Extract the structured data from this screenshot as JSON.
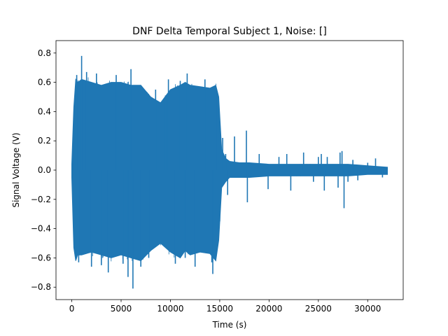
{
  "chart_data": {
    "type": "line",
    "title": "DNF Delta Temporal Subject 1, Noise: []",
    "xlabel": "Time (s)",
    "ylabel": "Signal Voltage (V)",
    "xlim": [
      -1600,
      33600
    ],
    "ylim": [
      -0.885,
      0.885
    ],
    "xticks": [
      0,
      5000,
      10000,
      15000,
      20000,
      25000,
      30000
    ],
    "xtick_labels": [
      "0",
      "5000",
      "10000",
      "15000",
      "20000",
      "25000",
      "30000"
    ],
    "yticks": [
      -0.8,
      -0.6,
      -0.4,
      -0.2,
      0.0,
      0.2,
      0.4,
      0.6,
      0.8
    ],
    "ytick_labels": [
      "−0.8",
      "−0.6",
      "−0.4",
      "−0.2",
      "0.0",
      "0.2",
      "0.4",
      "0.6",
      "0.8"
    ],
    "grid": false,
    "series_color": "#1f77b4",
    "envelope": {
      "x": [
        0,
        200,
        400,
        600,
        1000,
        2000,
        3000,
        4000,
        5000,
        6000,
        7000,
        8000,
        9000,
        10000,
        11000,
        11500,
        12000,
        13000,
        14000,
        14600,
        14900,
        15200,
        15600,
        16000,
        17000,
        18000,
        20000,
        22000,
        24000,
        26000,
        28000,
        30000,
        32000
      ],
      "upper": [
        0.04,
        0.43,
        0.62,
        0.6,
        0.62,
        0.6,
        0.58,
        0.6,
        0.6,
        0.58,
        0.58,
        0.5,
        0.46,
        0.55,
        0.58,
        0.6,
        0.58,
        0.57,
        0.56,
        0.58,
        0.5,
        0.14,
        0.08,
        0.06,
        0.05,
        0.05,
        0.04,
        0.04,
        0.04,
        0.04,
        0.04,
        0.03,
        0.02
      ],
      "lower": [
        -0.05,
        -0.53,
        -0.62,
        -0.58,
        -0.58,
        -0.56,
        -0.58,
        -0.6,
        -0.58,
        -0.6,
        -0.62,
        -0.55,
        -0.5,
        -0.56,
        -0.6,
        -0.55,
        -0.58,
        -0.56,
        -0.57,
        -0.62,
        -0.48,
        -0.12,
        -0.08,
        -0.05,
        -0.05,
        -0.05,
        -0.04,
        -0.04,
        -0.04,
        -0.04,
        -0.04,
        -0.03,
        -0.03
      ]
    },
    "spikes": [
      {
        "x": 250,
        "y": 0.42
      },
      {
        "x": 500,
        "y": 0.65
      },
      {
        "x": 700,
        "y": -0.63
      },
      {
        "x": 1000,
        "y": 0.78
      },
      {
        "x": 1500,
        "y": 0.67
      },
      {
        "x": 2000,
        "y": -0.66
      },
      {
        "x": 2500,
        "y": 0.66
      },
      {
        "x": 3000,
        "y": -0.65
      },
      {
        "x": 3700,
        "y": -0.7
      },
      {
        "x": 4500,
        "y": 0.65
      },
      {
        "x": 5200,
        "y": -0.64
      },
      {
        "x": 5700,
        "y": -0.73
      },
      {
        "x": 6000,
        "y": 0.69
      },
      {
        "x": 6200,
        "y": -0.81
      },
      {
        "x": 7000,
        "y": -0.66
      },
      {
        "x": 7800,
        "y": -0.6
      },
      {
        "x": 8500,
        "y": 0.55
      },
      {
        "x": 9500,
        "y": 0.51
      },
      {
        "x": 9800,
        "y": 0.62
      },
      {
        "x": 10500,
        "y": -0.64
      },
      {
        "x": 11000,
        "y": 0.61
      },
      {
        "x": 11500,
        "y": -0.6
      },
      {
        "x": 11700,
        "y": 0.66
      },
      {
        "x": 12500,
        "y": -0.66
      },
      {
        "x": 13500,
        "y": 0.62
      },
      {
        "x": 14200,
        "y": -0.63
      },
      {
        "x": 14300,
        "y": -0.71
      },
      {
        "x": 14600,
        "y": 0.55
      },
      {
        "x": 15300,
        "y": 0.22
      },
      {
        "x": 15600,
        "y": 0.11
      },
      {
        "x": 15800,
        "y": -0.17
      },
      {
        "x": 16500,
        "y": 0.23
      },
      {
        "x": 17700,
        "y": 0.27
      },
      {
        "x": 17800,
        "y": -0.22
      },
      {
        "x": 19000,
        "y": 0.11
      },
      {
        "x": 19900,
        "y": -0.13
      },
      {
        "x": 21000,
        "y": 0.09
      },
      {
        "x": 21800,
        "y": 0.11
      },
      {
        "x": 22200,
        "y": -0.14
      },
      {
        "x": 23500,
        "y": 0.12
      },
      {
        "x": 24500,
        "y": -0.08
      },
      {
        "x": 25000,
        "y": 0.09
      },
      {
        "x": 25300,
        "y": 0.11
      },
      {
        "x": 25600,
        "y": -0.14
      },
      {
        "x": 25900,
        "y": 0.09
      },
      {
        "x": 27000,
        "y": -0.12
      },
      {
        "x": 27200,
        "y": 0.12
      },
      {
        "x": 27400,
        "y": 0.13
      },
      {
        "x": 27600,
        "y": -0.26
      },
      {
        "x": 28000,
        "y": -0.08
      },
      {
        "x": 28500,
        "y": 0.07
      },
      {
        "x": 29000,
        "y": -0.07
      },
      {
        "x": 30000,
        "y": 0.05
      },
      {
        "x": 30800,
        "y": 0.08
      },
      {
        "x": 31500,
        "y": -0.05
      }
    ]
  }
}
